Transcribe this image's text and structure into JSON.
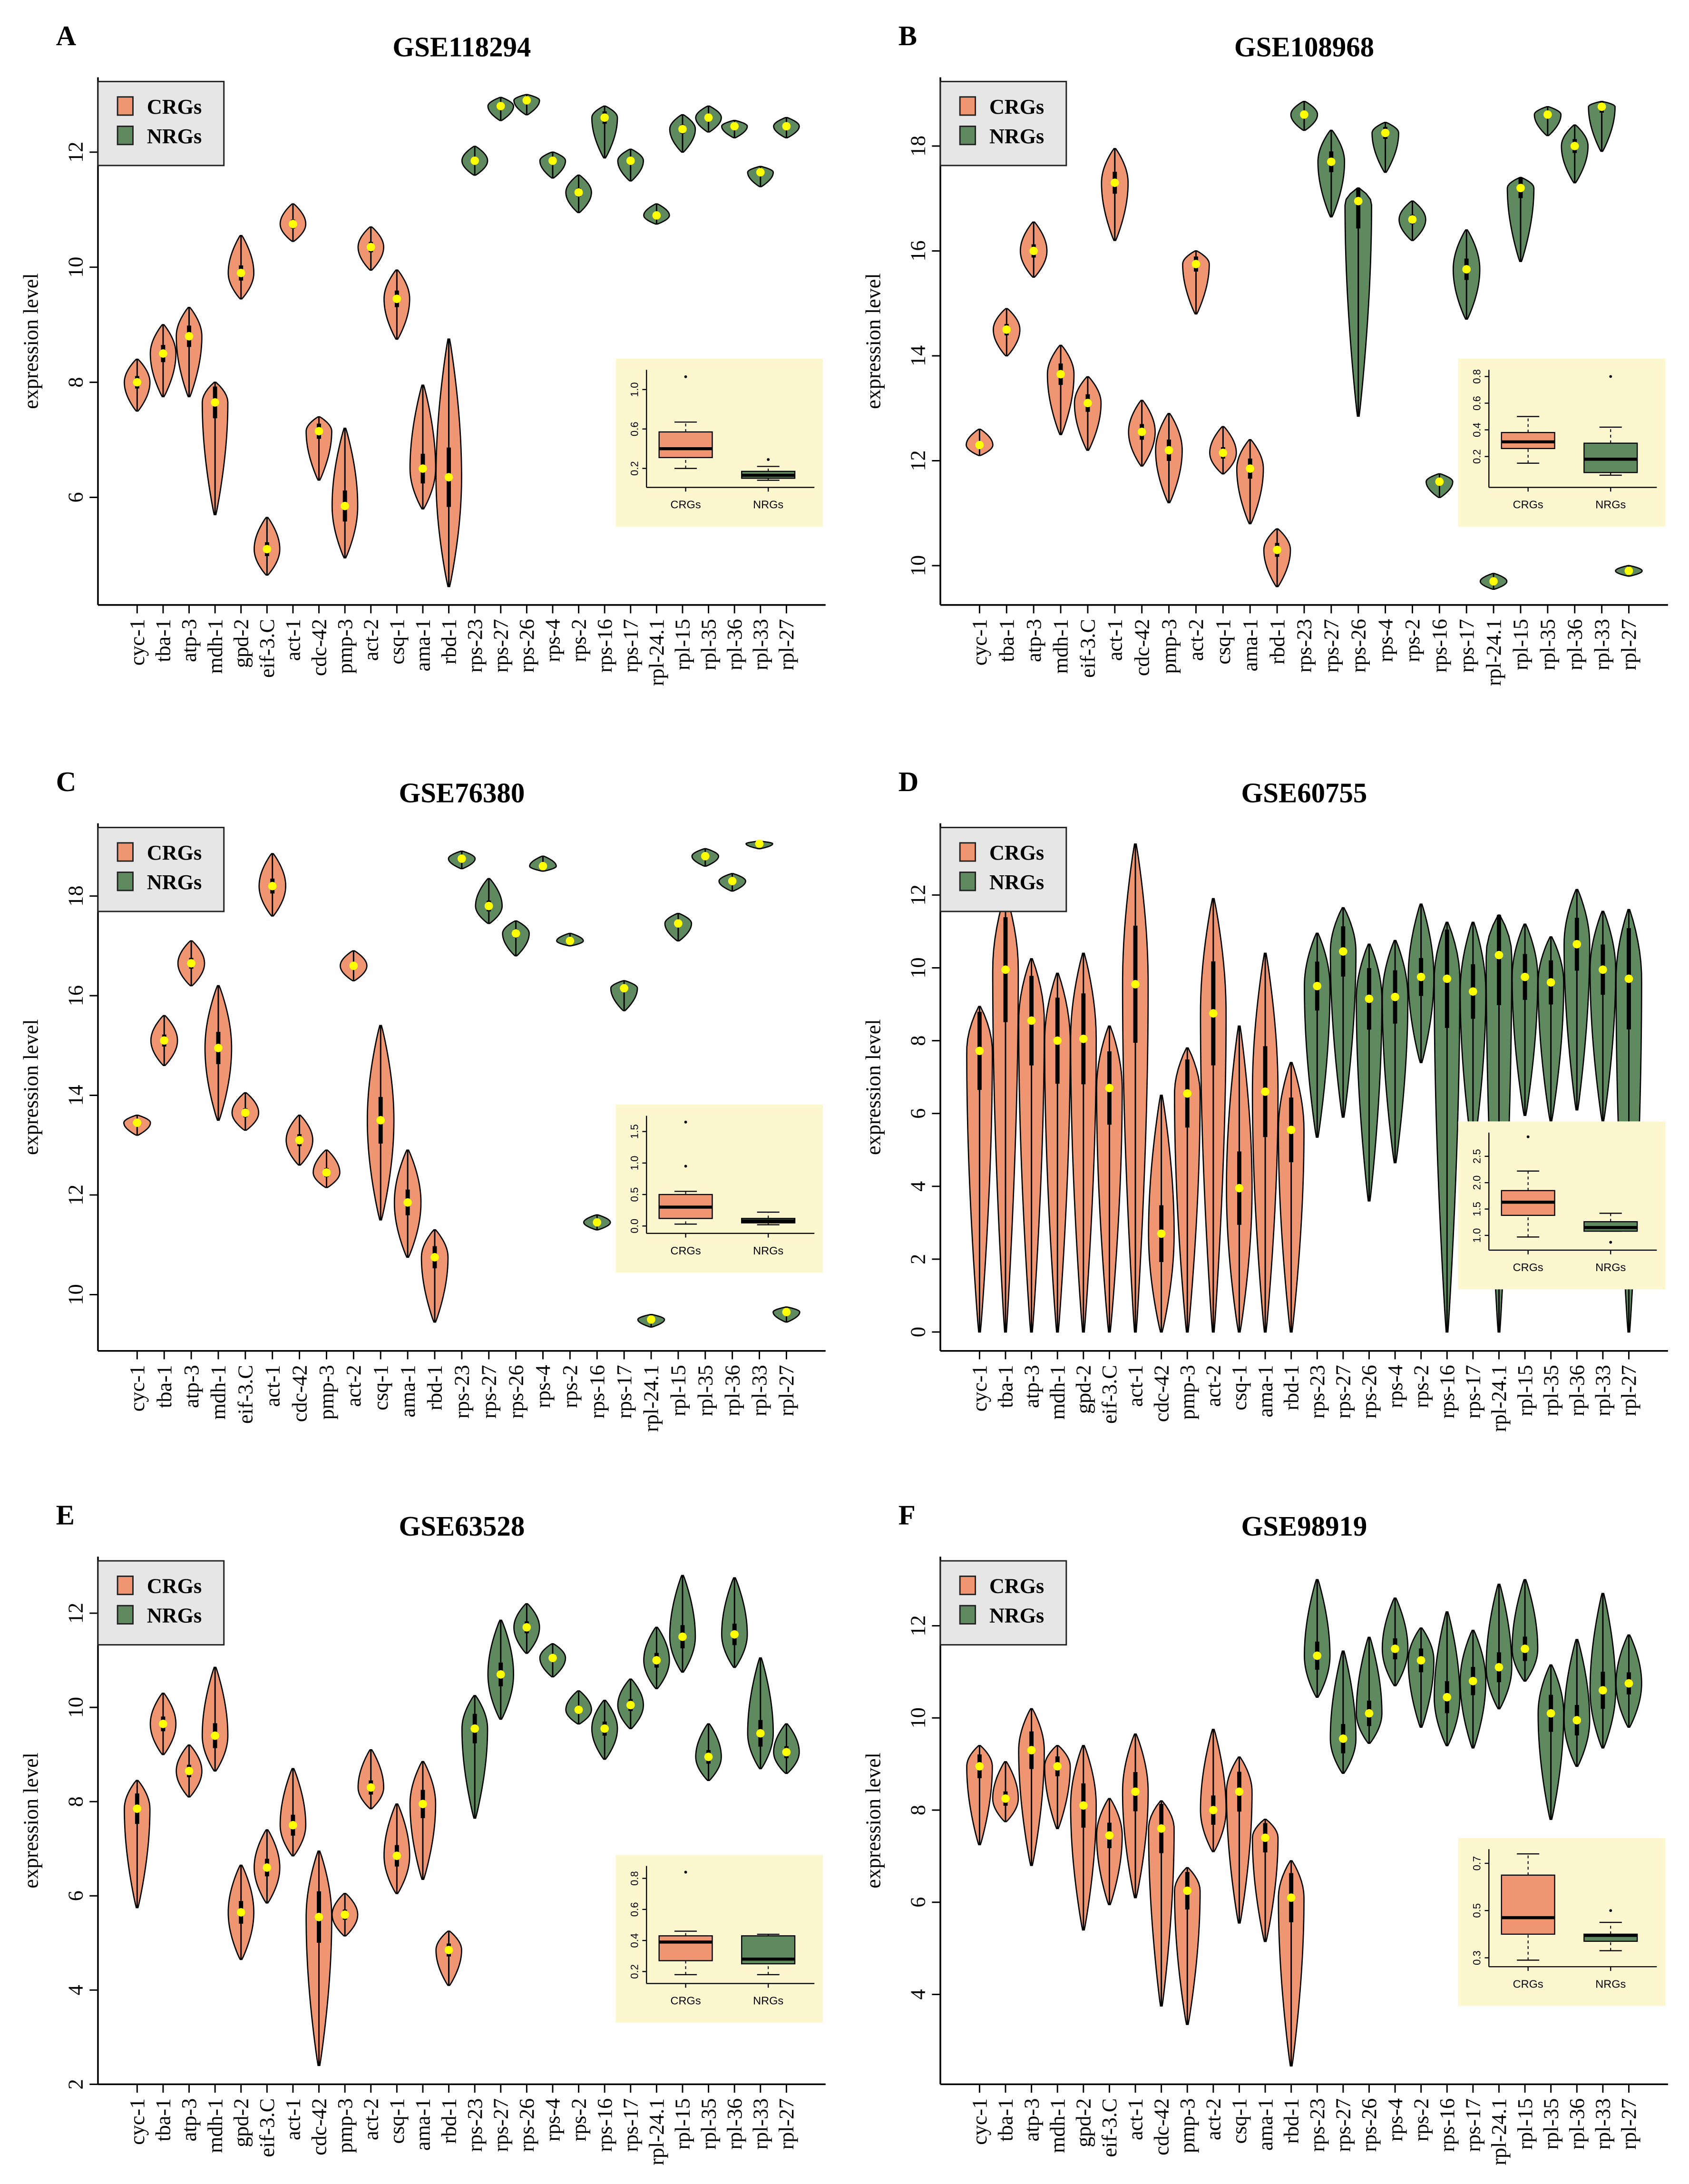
{
  "legend": {
    "crg_label": "CRGs",
    "nrg_label": "NRGs"
  },
  "colors": {
    "crg": "#EF9571",
    "nrg": "#5F8A60",
    "median_dot": "#FFFF00",
    "inset_bg": "#FDF7CF",
    "legend_bg": "#E6E6E6"
  },
  "chart_data": [
    {
      "type": "violin",
      "panel": "A",
      "title": "GSE118294",
      "ylabel": "expression level",
      "ylim": [
        4.13,
        13.3
      ],
      "yticks": [
        6,
        8,
        10,
        12
      ],
      "n_crg": 13,
      "genes": [
        "cyc-1",
        "tba-1",
        "atp-3",
        "mdh-1",
        "gpd-2",
        "eif-3.C",
        "act-1",
        "cdc-42",
        "pmp-3",
        "act-2",
        "csq-1",
        "ama-1",
        "rbd-1",
        "rps-23",
        "rps-27",
        "rps-26",
        "rps-4",
        "rps-2",
        "rps-16",
        "rps-17",
        "rpl-24.1",
        "rpl-15",
        "rpl-35",
        "rpl-36",
        "rpl-33",
        "rpl-27"
      ],
      "violins": [
        [
          7.5,
          8.0,
          8.4
        ],
        [
          7.75,
          8.5,
          9.0
        ],
        [
          7.75,
          8.8,
          9.3
        ],
        [
          5.7,
          7.65,
          8.0
        ],
        [
          9.45,
          9.9,
          10.55
        ],
        [
          4.65,
          5.1,
          5.65
        ],
        [
          10.45,
          10.75,
          11.1
        ],
        [
          6.3,
          7.15,
          7.4
        ],
        [
          4.95,
          5.85,
          7.2
        ],
        [
          9.95,
          10.35,
          10.7
        ],
        [
          8.75,
          9.45,
          9.95
        ],
        [
          5.8,
          6.5,
          7.95
        ],
        [
          4.45,
          6.35,
          8.75
        ],
        [
          11.6,
          11.85,
          12.1
        ],
        [
          12.55,
          12.8,
          12.95
        ],
        [
          12.65,
          12.9,
          13.0
        ],
        [
          11.55,
          11.85,
          12.0
        ],
        [
          10.95,
          11.3,
          11.6
        ],
        [
          11.9,
          12.6,
          12.8
        ],
        [
          11.5,
          11.85,
          12.05
        ],
        [
          10.75,
          10.9,
          11.1
        ],
        [
          12.0,
          12.4,
          12.65
        ],
        [
          12.35,
          12.6,
          12.8
        ],
        [
          12.25,
          12.45,
          12.55
        ],
        [
          11.4,
          11.65,
          11.75
        ],
        [
          12.25,
          12.45,
          12.6
        ]
      ],
      "inset": {
        "ylim": [
          0.05,
          1.2
        ],
        "yticks": [
          "0.2",
          "0.6",
          "1.0"
        ],
        "categories": [
          "CRGs",
          "NRGs"
        ],
        "boxes": [
          {
            "min": 0.2,
            "q1": 0.31,
            "median": 0.4,
            "q3": 0.57,
            "max": 0.67,
            "outliers": [
              1.13
            ]
          },
          {
            "min": 0.08,
            "q1": 0.1,
            "median": 0.13,
            "q3": 0.17,
            "max": 0.22,
            "outliers": [
              0.29
            ]
          }
        ]
      }
    },
    {
      "type": "violin",
      "panel": "B",
      "title": "GSE108968",
      "ylabel": "expression level",
      "ylim": [
        9.25,
        19.31
      ],
      "yticks": [
        10,
        12,
        14,
        16,
        18
      ],
      "n_crg": 12,
      "genes": [
        "cyc-1",
        "tba-1",
        "atp-3",
        "mdh-1",
        "eif-3.C",
        "act-1",
        "cdc-42",
        "pmp-3",
        "act-2",
        "csq-1",
        "ama-1",
        "rbd-1",
        "rps-23",
        "rps-27",
        "rps-26",
        "rps-4",
        "rps-2",
        "rps-16",
        "rps-17",
        "rpl-24.1",
        "rpl-15",
        "rpl-35",
        "rpl-36",
        "rpl-33",
        "rpl-27"
      ],
      "violins": [
        [
          12.1,
          12.3,
          12.6
        ],
        [
          14.0,
          14.5,
          14.9
        ],
        [
          15.5,
          16.0,
          16.55
        ],
        [
          12.5,
          13.65,
          14.2
        ],
        [
          12.2,
          13.1,
          13.6
        ],
        [
          16.2,
          17.3,
          17.95
        ],
        [
          11.9,
          12.55,
          13.15
        ],
        [
          11.2,
          12.2,
          12.9
        ],
        [
          14.8,
          15.75,
          16.0
        ],
        [
          11.75,
          12.15,
          12.65
        ],
        [
          10.8,
          11.85,
          12.4
        ],
        [
          9.6,
          10.3,
          10.7
        ],
        [
          18.3,
          18.6,
          18.85
        ],
        [
          16.65,
          17.7,
          18.3
        ],
        [
          12.85,
          16.95,
          17.2
        ],
        [
          17.5,
          18.25,
          18.45
        ],
        [
          16.2,
          16.6,
          16.95
        ],
        [
          11.3,
          11.6,
          11.75
        ],
        [
          14.7,
          15.65,
          16.4
        ],
        [
          9.55,
          9.7,
          9.85
        ],
        [
          15.8,
          17.2,
          17.4
        ],
        [
          18.2,
          18.6,
          18.75
        ],
        [
          17.3,
          18.0,
          18.4
        ],
        [
          17.9,
          18.75,
          18.85
        ],
        [
          9.8,
          9.9,
          10.0
        ]
      ],
      "inset": {
        "ylim": [
          0.0,
          0.85
        ],
        "yticks": [
          "0.2",
          "0.4",
          "0.6",
          "0.8"
        ],
        "categories": [
          "CRGs",
          "NRGs"
        ],
        "boxes": [
          {
            "min": 0.15,
            "q1": 0.26,
            "median": 0.31,
            "q3": 0.38,
            "max": 0.5,
            "outliers": []
          },
          {
            "min": 0.06,
            "q1": 0.08,
            "median": 0.18,
            "q3": 0.3,
            "max": 0.42,
            "outliers": [
              0.8
            ]
          }
        ]
      }
    },
    {
      "type": "violin",
      "panel": "C",
      "title": "GSE76380",
      "ylabel": "expression level",
      "ylim": [
        8.87,
        19.46
      ],
      "yticks": [
        10,
        12,
        14,
        16,
        18
      ],
      "n_crg": 12,
      "genes": [
        "cyc-1",
        "tba-1",
        "atp-3",
        "mdh-1",
        "eif-3.C",
        "act-1",
        "cdc-42",
        "pmp-3",
        "act-2",
        "csq-1",
        "ama-1",
        "rbd-1",
        "rps-23",
        "rps-27",
        "rps-26",
        "rps-4",
        "rps-2",
        "rps-16",
        "rps-17",
        "rpl-24.1",
        "rpl-15",
        "rpl-35",
        "rpl-36",
        "rpl-33",
        "rpl-27"
      ],
      "violins": [
        [
          13.2,
          13.45,
          13.6
        ],
        [
          14.6,
          15.1,
          15.6
        ],
        [
          16.2,
          16.65,
          17.1
        ],
        [
          13.5,
          14.95,
          16.2
        ],
        [
          13.3,
          13.65,
          14.05
        ],
        [
          17.6,
          18.2,
          18.85
        ],
        [
          12.6,
          13.1,
          13.6
        ],
        [
          12.15,
          12.45,
          12.9
        ],
        [
          16.3,
          16.6,
          16.9
        ],
        [
          11.5,
          13.5,
          15.4
        ],
        [
          10.75,
          11.85,
          12.9
        ],
        [
          9.45,
          10.75,
          11.3
        ],
        [
          18.55,
          18.75,
          18.9
        ],
        [
          17.45,
          17.8,
          18.35
        ],
        [
          16.8,
          17.25,
          17.5
        ],
        [
          18.5,
          18.6,
          18.8
        ],
        [
          17.0,
          17.1,
          17.25
        ],
        [
          11.3,
          11.45,
          11.6
        ],
        [
          15.7,
          16.15,
          16.3
        ],
        [
          9.35,
          9.5,
          9.6
        ],
        [
          17.1,
          17.45,
          17.65
        ],
        [
          18.6,
          18.8,
          18.95
        ],
        [
          18.1,
          18.3,
          18.45
        ],
        [
          18.95,
          19.05,
          19.1
        ],
        [
          9.45,
          9.65,
          9.75
        ]
      ],
      "inset": {
        "ylim": [
          -0.05,
          1.75
        ],
        "yticks": [
          "0.0",
          "0.5",
          "1.0",
          "1.5"
        ],
        "categories": [
          "CRGs",
          "NRGs"
        ],
        "boxes": [
          {
            "min": 0.03,
            "q1": 0.12,
            "median": 0.3,
            "q3": 0.5,
            "max": 0.55,
            "outliers": [
              0.95,
              1.65
            ]
          },
          {
            "min": 0.02,
            "q1": 0.05,
            "median": 0.08,
            "q3": 0.12,
            "max": 0.22,
            "outliers": []
          }
        ]
      }
    },
    {
      "type": "violin",
      "panel": "D",
      "title": "GSE60755",
      "ylabel": "expression level",
      "ylim": [
        -0.52,
        13.97
      ],
      "yticks": [
        0,
        2,
        4,
        6,
        8,
        10,
        12
      ],
      "n_crg": 13,
      "genes": [
        "cyc-1",
        "tba-1",
        "atp-3",
        "mdh-1",
        "gpd-2",
        "eif-3.C",
        "act-1",
        "cdc-42",
        "pmp-3",
        "act-2",
        "csq-1",
        "ama-1",
        "rbd-1",
        "rps-23",
        "rps-27",
        "rps-26",
        "rps-4",
        "rps-2",
        "rps-16",
        "rps-17",
        "rpl-24.1",
        "rpl-15",
        "rpl-35",
        "rpl-36",
        "rpl-33",
        "rpl-27"
      ],
      "violins": [
        [
          0,
          7.72,
          8.94
        ],
        [
          0,
          9.95,
          12.0
        ],
        [
          0,
          8.55,
          10.25
        ],
        [
          0,
          8.0,
          9.85
        ],
        [
          0,
          8.05,
          10.4
        ],
        [
          0,
          6.7,
          8.4
        ],
        [
          0,
          9.55,
          13.4
        ],
        [
          0,
          2.7,
          6.5
        ],
        [
          0,
          6.55,
          7.8
        ],
        [
          0,
          8.75,
          11.9
        ],
        [
          0,
          3.95,
          8.4
        ],
        [
          0,
          6.6,
          10.4
        ],
        [
          0,
          5.55,
          7.4
        ],
        [
          5.35,
          9.5,
          10.95
        ],
        [
          5.9,
          10.45,
          11.65
        ],
        [
          3.6,
          9.15,
          10.65
        ],
        [
          4.65,
          9.2,
          10.75
        ],
        [
          7.4,
          9.75,
          11.75
        ],
        [
          0,
          9.7,
          11.25
        ],
        [
          5.0,
          9.35,
          11.25
        ],
        [
          0,
          10.35,
          11.45
        ],
        [
          5.95,
          9.75,
          11.2
        ],
        [
          5.8,
          9.6,
          10.85
        ],
        [
          6.1,
          10.65,
          12.15
        ],
        [
          5.8,
          9.95,
          11.55
        ],
        [
          0,
          9.7,
          11.6
        ]
      ],
      "inset": {
        "ylim": [
          0.8,
          2.95
        ],
        "yticks": [
          "1.0",
          "1.5",
          "2.0",
          "2.5"
        ],
        "categories": [
          "CRGs",
          "NRGs"
        ],
        "boxes": [
          {
            "min": 0.97,
            "q1": 1.38,
            "median": 1.63,
            "q3": 1.85,
            "max": 2.22,
            "outliers": [
              2.87
            ]
          },
          {
            "min": 1.08,
            "q1": 1.08,
            "median": 1.15,
            "q3": 1.26,
            "max": 1.42,
            "outliers": [
              0.87
            ]
          }
        ]
      }
    },
    {
      "type": "violin",
      "panel": "E",
      "title": "GSE63528",
      "ylabel": "expression level",
      "ylim": [
        2.0,
        13.2
      ],
      "yticks": [
        2,
        4,
        6,
        8,
        10,
        12
      ],
      "n_crg": 13,
      "genes": [
        "cyc-1",
        "tba-1",
        "atp-3",
        "mdh-1",
        "gpd-2",
        "eif-3.C",
        "act-1",
        "cdc-42",
        "pmp-3",
        "act-2",
        "csq-1",
        "ama-1",
        "rbd-1",
        "rps-23",
        "rps-27",
        "rps-26",
        "rps-4",
        "rps-2",
        "rps-16",
        "rps-17",
        "rpl-24.1",
        "rpl-15",
        "rpl-35",
        "rpl-36",
        "rpl-33",
        "rpl-27"
      ],
      "violins": [
        [
          5.75,
          7.85,
          8.45
        ],
        [
          9.0,
          9.65,
          10.3
        ],
        [
          8.1,
          8.65,
          9.2
        ],
        [
          8.65,
          9.4,
          10.85
        ],
        [
          4.65,
          5.65,
          6.65
        ],
        [
          5.85,
          6.6,
          7.4
        ],
        [
          6.85,
          7.5,
          8.7
        ],
        [
          2.4,
          5.55,
          6.95
        ],
        [
          5.15,
          5.6,
          6.05
        ],
        [
          7.85,
          8.3,
          9.1
        ],
        [
          6.05,
          6.85,
          7.95
        ],
        [
          6.35,
          7.95,
          8.85
        ],
        [
          4.1,
          4.85,
          5.25
        ],
        [
          7.65,
          9.55,
          10.25
        ],
        [
          9.75,
          10.7,
          11.85
        ],
        [
          11.15,
          11.7,
          12.2
        ],
        [
          10.65,
          11.05,
          11.35
        ],
        [
          9.65,
          9.95,
          10.35
        ],
        [
          8.9,
          9.55,
          10.15
        ],
        [
          9.55,
          10.05,
          10.6
        ],
        [
          10.4,
          11.0,
          11.7
        ],
        [
          10.75,
          11.5,
          12.8
        ],
        [
          8.45,
          8.95,
          9.65
        ],
        [
          10.85,
          11.55,
          12.75
        ],
        [
          8.7,
          9.45,
          11.05
        ],
        [
          8.6,
          9.05,
          9.65
        ]
      ],
      "inset": {
        "ylim": [
          0.15,
          0.88
        ],
        "yticks": [
          "0.2",
          "0.4",
          "0.6",
          "0.8"
        ],
        "categories": [
          "CRGs",
          "NRGs"
        ],
        "boxes": [
          {
            "min": 0.18,
            "q1": 0.27,
            "median": 0.39,
            "q3": 0.43,
            "max": 0.46,
            "outliers": [
              0.84
            ]
          },
          {
            "min": 0.18,
            "q1": 0.25,
            "median": 0.28,
            "q3": 0.43,
            "max": 0.44,
            "outliers": []
          }
        ]
      }
    },
    {
      "type": "violin",
      "panel": "F",
      "title": "GSE98919",
      "ylabel": "expression level",
      "ylim": [
        2.05,
        13.5
      ],
      "yticks": [
        4,
        6,
        8,
        10,
        12
      ],
      "n_crg": 13,
      "genes": [
        "cyc-1",
        "tba-1",
        "atp-3",
        "mdh-1",
        "gpd-2",
        "eif-3.C",
        "act-1",
        "cdc-42",
        "pmp-3",
        "act-2",
        "csq-1",
        "ama-1",
        "rbd-1",
        "rps-23",
        "rps-27",
        "rps-26",
        "rps-4",
        "rps-2",
        "rps-16",
        "rps-17",
        "rpl-24.1",
        "rpl-15",
        "rpl-35",
        "rpl-36",
        "rpl-33",
        "rpl-27"
      ],
      "violins": [
        [
          7.25,
          8.95,
          9.4
        ],
        [
          7.75,
          8.25,
          9.05
        ],
        [
          6.8,
          9.3,
          10.2
        ],
        [
          7.6,
          8.95,
          9.4
        ],
        [
          5.4,
          8.1,
          9.4
        ],
        [
          5.95,
          7.45,
          8.25
        ],
        [
          6.1,
          8.4,
          9.65
        ],
        [
          3.75,
          7.6,
          8.2
        ],
        [
          3.35,
          6.25,
          6.75
        ],
        [
          7.1,
          8.0,
          9.75
        ],
        [
          5.55,
          8.4,
          9.15
        ],
        [
          5.15,
          7.4,
          7.8
        ],
        [
          2.45,
          6.1,
          6.9
        ],
        [
          10.45,
          11.35,
          13.0
        ],
        [
          8.8,
          9.55,
          11.45
        ],
        [
          9.45,
          10.1,
          11.75
        ],
        [
          10.7,
          11.5,
          12.6
        ],
        [
          9.8,
          11.25,
          11.95
        ],
        [
          9.4,
          10.45,
          12.3
        ],
        [
          9.35,
          10.8,
          11.9
        ],
        [
          10.2,
          11.1,
          12.9
        ],
        [
          10.8,
          11.5,
          13.0
        ],
        [
          7.8,
          10.1,
          11.15
        ],
        [
          8.95,
          9.95,
          11.7
        ],
        [
          9.35,
          10.6,
          12.7
        ],
        [
          9.8,
          10.75,
          11.8
        ]
      ],
      "inset": {
        "ylim": [
          0.28,
          0.76
        ],
        "yticks": [
          "0.3",
          "0.5",
          "0.7"
        ],
        "categories": [
          "CRGs",
          "NRGs"
        ],
        "boxes": [
          {
            "min": 0.29,
            "q1": 0.4,
            "median": 0.47,
            "q3": 0.65,
            "max": 0.74,
            "outliers": []
          },
          {
            "min": 0.33,
            "q1": 0.37,
            "median": 0.395,
            "q3": 0.4,
            "max": 0.45,
            "outliers": [
              0.5
            ]
          }
        ]
      }
    }
  ]
}
